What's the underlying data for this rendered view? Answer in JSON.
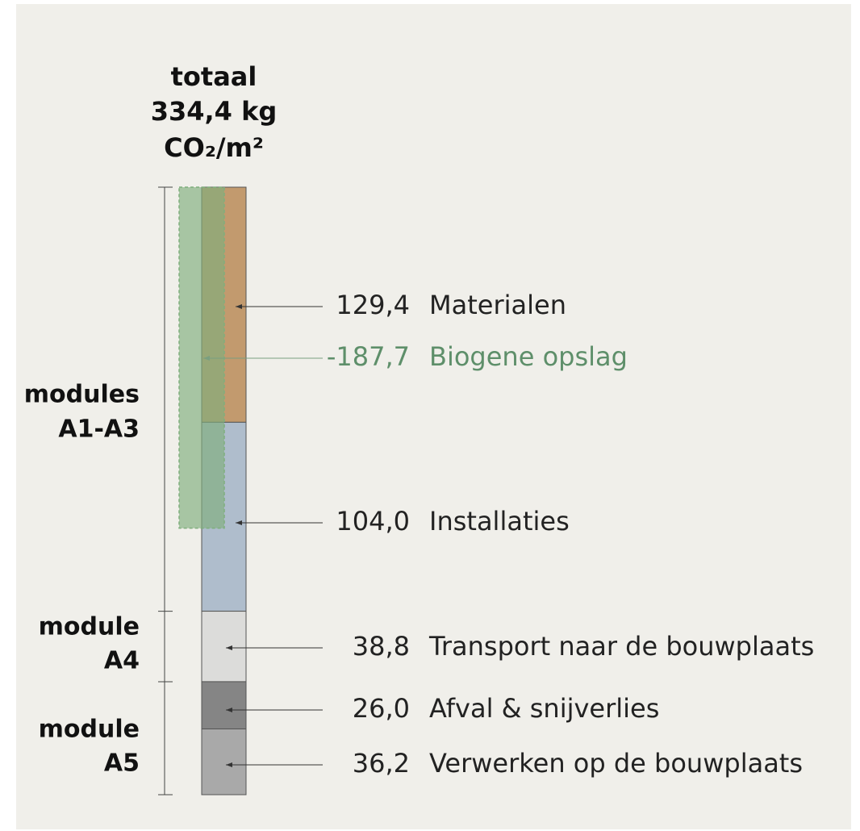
{
  "chart_data": {
    "type": "bar",
    "title": [
      "totaal",
      "334,4 kg",
      "CO₂/m²"
    ],
    "categories": [
      "Materialen",
      "Biogene opslag",
      "Installaties",
      "Transport naar de bouwplaats",
      "Afval & snijverlies",
      "Verwerken op de bouwplaats"
    ],
    "values": [
      129.4,
      -187.7,
      104.0,
      38.8,
      26.0,
      36.2
    ],
    "value_labels": [
      "129,4",
      "-187,7",
      "104,0",
      "38,8",
      "26,0",
      "36,2"
    ],
    "colors": [
      "#c29a6e",
      "#7fae7d",
      "#afbdcc",
      "#dcdcda",
      "#858585",
      "#a9a9a9"
    ],
    "groups": [
      [
        "modules",
        "A1-A3"
      ],
      [
        "module",
        "A4"
      ],
      [
        "module",
        "A5"
      ]
    ]
  }
}
